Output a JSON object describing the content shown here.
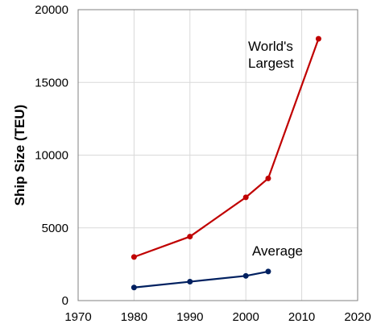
{
  "chart_data": {
    "type": "line",
    "title": "",
    "xlabel": "",
    "ylabel": "Ship Size (TEU)",
    "xlim": [
      1970,
      2020
    ],
    "ylim": [
      0,
      20000
    ],
    "x_ticks": [
      "1970",
      "1980",
      "1990",
      "2000",
      "2010",
      "2020"
    ],
    "y_ticks": [
      "0",
      "5000",
      "10000",
      "15000",
      "20000"
    ],
    "grid": true,
    "legend": "none",
    "series": [
      {
        "key": "largest",
        "color": "#c00000",
        "x": [
          1980,
          1990,
          2000,
          2004,
          2013
        ],
        "y": [
          3000,
          4400,
          7100,
          8400,
          18000
        ]
      },
      {
        "key": "average",
        "color": "#002060",
        "x": [
          1980,
          1990,
          2000,
          2004
        ],
        "y": [
          900,
          1300,
          1700,
          2000
        ]
      }
    ],
    "annotations": [
      {
        "key": "largest",
        "lines": [
          "World's",
          "Largest"
        ]
      },
      {
        "key": "average",
        "lines": [
          "Average"
        ]
      }
    ]
  }
}
